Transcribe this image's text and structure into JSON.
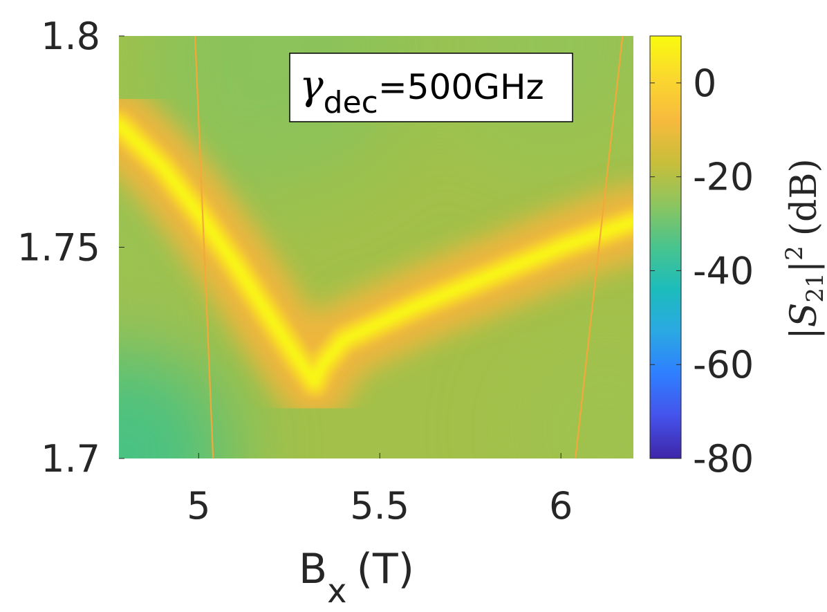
{
  "chart_data": {
    "type": "heatmap",
    "title": "",
    "xlabel": {
      "main": "B",
      "sub": "x",
      "unit": "(T)"
    },
    "ylabel": "",
    "xlim": [
      4.78,
      6.2
    ],
    "ylim": [
      1.7,
      1.8
    ],
    "x_ticks": [
      "5",
      "5.5",
      "6"
    ],
    "x_tick_values": [
      5,
      5.5,
      6
    ],
    "y_ticks": [
      "1.7",
      "1.75",
      "1.8"
    ],
    "y_tick_values": [
      1.7,
      1.75,
      1.8
    ],
    "colorbar": {
      "label": "|S21|^2 (dB)",
      "label_parts": {
        "open": "|S",
        "sub": "21",
        "close": "|",
        "sup": "2",
        "unit": "(dB)"
      },
      "range": [
        -80,
        10
      ],
      "ticks": [
        "0",
        "-20",
        "-40",
        "-60",
        "-80"
      ],
      "tick_values": [
        0,
        -20,
        -40,
        -60,
        -80
      ],
      "colormap": [
        "#3e26a8",
        "#4552eb",
        "#2f7fff",
        "#2aa8e3",
        "#1cbcbc",
        "#48c48e",
        "#8cc55f",
        "#c8be3a",
        "#f7ba3d",
        "#fad72e",
        "#f9fb0e"
      ]
    },
    "annotation": {
      "symbol": "γ",
      "sub": "dec",
      "value": "=500GHz"
    },
    "features": {
      "avoided_crossing_branch": {
        "x": [
          4.78,
          4.9,
          5.0,
          5.1,
          5.2,
          5.27,
          5.32,
          5.34,
          5.4,
          5.6,
          5.8,
          6.0,
          6.2
        ],
        "y": [
          1.779,
          1.769,
          1.758,
          1.746,
          1.733,
          1.724,
          1.718,
          1.722,
          1.728,
          1.736,
          1.743,
          1.75,
          1.756
        ]
      },
      "thin_resonance_lines": [
        {
          "x": [
            4.99,
            5.04
          ],
          "y": [
            1.8,
            1.7
          ]
        },
        {
          "x": [
            6.17,
            6.04
          ],
          "y": [
            1.8,
            1.7
          ]
        }
      ],
      "background_level_db": -15,
      "peak_level_db": 8
    }
  }
}
